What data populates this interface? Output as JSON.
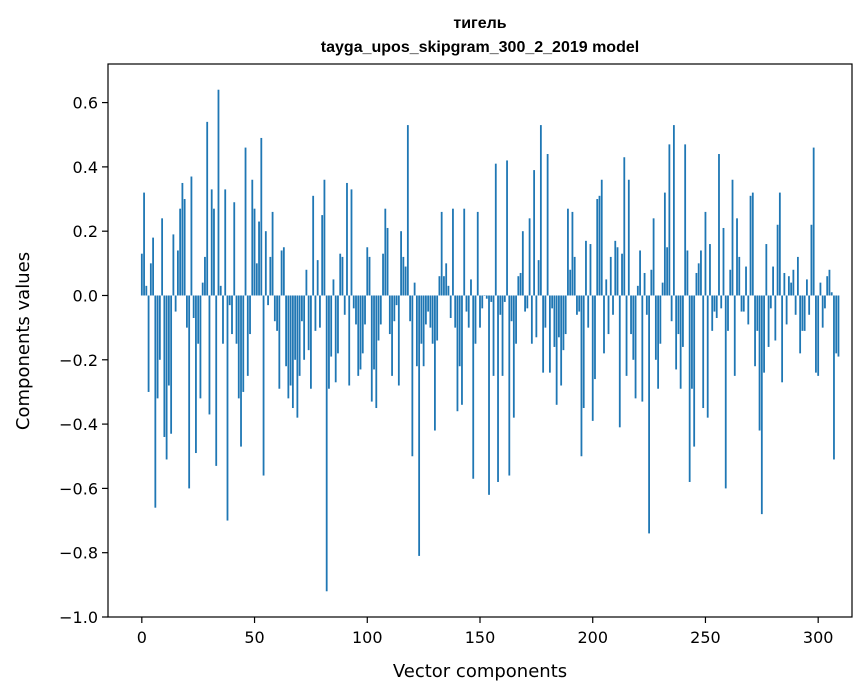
{
  "chart_data": {
    "type": "bar",
    "title": "тигель",
    "subtitle": "tayga_upos_skipgram_300_2_2019 model",
    "xlabel": "Vector components",
    "ylabel": "Components values",
    "xlim": [
      -15,
      315
    ],
    "ylim": [
      -1.0,
      0.72
    ],
    "xticks": [
      0,
      50,
      100,
      150,
      200,
      250,
      300
    ],
    "yticks": [
      0.6,
      0.4,
      0.2,
      0.0,
      -0.2,
      -0.4,
      -0.6,
      -0.8,
      -1.0
    ],
    "ytick_labels": [
      "0.6",
      "0.4",
      "0.2",
      "0.0",
      "−0.2",
      "−0.4",
      "−0.6",
      "−0.8",
      "−1.0"
    ],
    "bar_color": "#1f77b4",
    "values": [
      0.13,
      0.32,
      0.03,
      -0.3,
      0.1,
      0.18,
      -0.66,
      -0.32,
      -0.2,
      0.24,
      -0.44,
      -0.51,
      -0.28,
      -0.43,
      0.19,
      -0.05,
      0.14,
      0.27,
      0.35,
      0.3,
      -0.1,
      -0.6,
      0.37,
      -0.07,
      -0.49,
      -0.15,
      -0.32,
      0.04,
      0.12,
      0.54,
      -0.37,
      0.33,
      0.27,
      -0.53,
      0.64,
      0.03,
      -0.15,
      0.33,
      -0.7,
      -0.03,
      -0.12,
      0.29,
      -0.15,
      -0.32,
      -0.47,
      -0.3,
      0.46,
      -0.25,
      -0.12,
      0.36,
      0.27,
      0.1,
      0.23,
      0.49,
      -0.56,
      0.2,
      -0.03,
      0.12,
      0.26,
      -0.08,
      -0.11,
      -0.29,
      0.14,
      0.15,
      -0.22,
      -0.32,
      -0.28,
      -0.35,
      -0.2,
      -0.38,
      -0.25,
      -0.08,
      -0.2,
      0.08,
      -0.17,
      -0.29,
      0.31,
      -0.11,
      0.11,
      -0.1,
      0.25,
      0.36,
      -0.92,
      -0.29,
      -0.19,
      0.05,
      -0.27,
      -0.18,
      0.13,
      0.12,
      -0.06,
      0.35,
      -0.28,
      0.33,
      -0.04,
      -0.09,
      -0.25,
      -0.23,
      -0.18,
      -0.09,
      0.15,
      0.12,
      -0.33,
      -0.23,
      -0.35,
      -0.14,
      -0.09,
      0.13,
      0.27,
      0.21,
      -0.12,
      -0.25,
      -0.08,
      -0.03,
      -0.28,
      0.2,
      0.12,
      0.09,
      0.53,
      -0.08,
      -0.5,
      0.04,
      -0.22,
      -0.81,
      -0.15,
      -0.22,
      -0.09,
      -0.05,
      -0.1,
      -0.15,
      -0.42,
      -0.14,
      0.06,
      0.26,
      0.06,
      0.1,
      0.03,
      -0.07,
      0.27,
      -0.1,
      -0.36,
      -0.22,
      -0.34,
      0.27,
      -0.05,
      -0.1,
      0.05,
      -0.57,
      -0.15,
      0.26,
      -0.1,
      -0.04,
      0.0,
      -0.01,
      -0.62,
      -0.02,
      -0.25,
      0.41,
      -0.58,
      -0.06,
      -0.25,
      -0.02,
      0.42,
      -0.56,
      -0.08,
      -0.38,
      -0.15,
      0.06,
      0.07,
      0.2,
      -0.05,
      -0.04,
      0.24,
      -0.15,
      0.39,
      -0.13,
      0.11,
      0.53,
      -0.24,
      -0.1,
      0.44,
      -0.24,
      -0.04,
      -0.16,
      -0.34,
      -0.13,
      -0.28,
      -0.17,
      -0.12,
      0.27,
      0.08,
      0.26,
      0.12,
      -0.06,
      -0.05,
      -0.5,
      -0.35,
      0.17,
      -0.1,
      0.16,
      -0.39,
      -0.26,
      0.3,
      0.31,
      0.36,
      -0.18,
      0.05,
      -0.12,
      0.12,
      -0.06,
      0.17,
      0.15,
      -0.41,
      0.13,
      0.43,
      -0.25,
      0.36,
      -0.12,
      -0.2,
      -0.32,
      0.03,
      0.14,
      -0.33,
      0.07,
      -0.06,
      -0.74,
      0.08,
      0.24,
      -0.2,
      -0.29,
      -0.15,
      0.04,
      0.32,
      0.15,
      0.47,
      -0.08,
      0.53,
      -0.23,
      -0.12,
      -0.29,
      -0.16,
      0.47,
      0.14,
      -0.58,
      -0.29,
      -0.47,
      0.07,
      0.1,
      0.14,
      -0.35,
      0.26,
      -0.38,
      0.16,
      -0.11,
      -0.05,
      -0.07,
      0.44,
      -0.04,
      0.21,
      -0.6,
      -0.11,
      0.08,
      0.36,
      -0.25,
      0.24,
      0.12,
      -0.05,
      -0.05,
      0.09,
      -0.09,
      0.31,
      0.32,
      -0.22,
      -0.11,
      -0.42,
      -0.68,
      -0.24,
      0.16,
      -0.16,
      -0.04,
      0.09,
      -0.14,
      0.22,
      0.32,
      -0.27,
      0.07,
      -0.09,
      0.06,
      0.04,
      0.08,
      -0.06,
      0.12,
      -0.18,
      -0.11,
      -0.11,
      0.05,
      -0.06,
      0.22,
      0.46,
      -0.24,
      -0.25,
      0.04,
      -0.1,
      -0.04,
      0.06,
      0.08,
      0.01,
      -0.51,
      -0.18,
      -0.19
    ]
  }
}
